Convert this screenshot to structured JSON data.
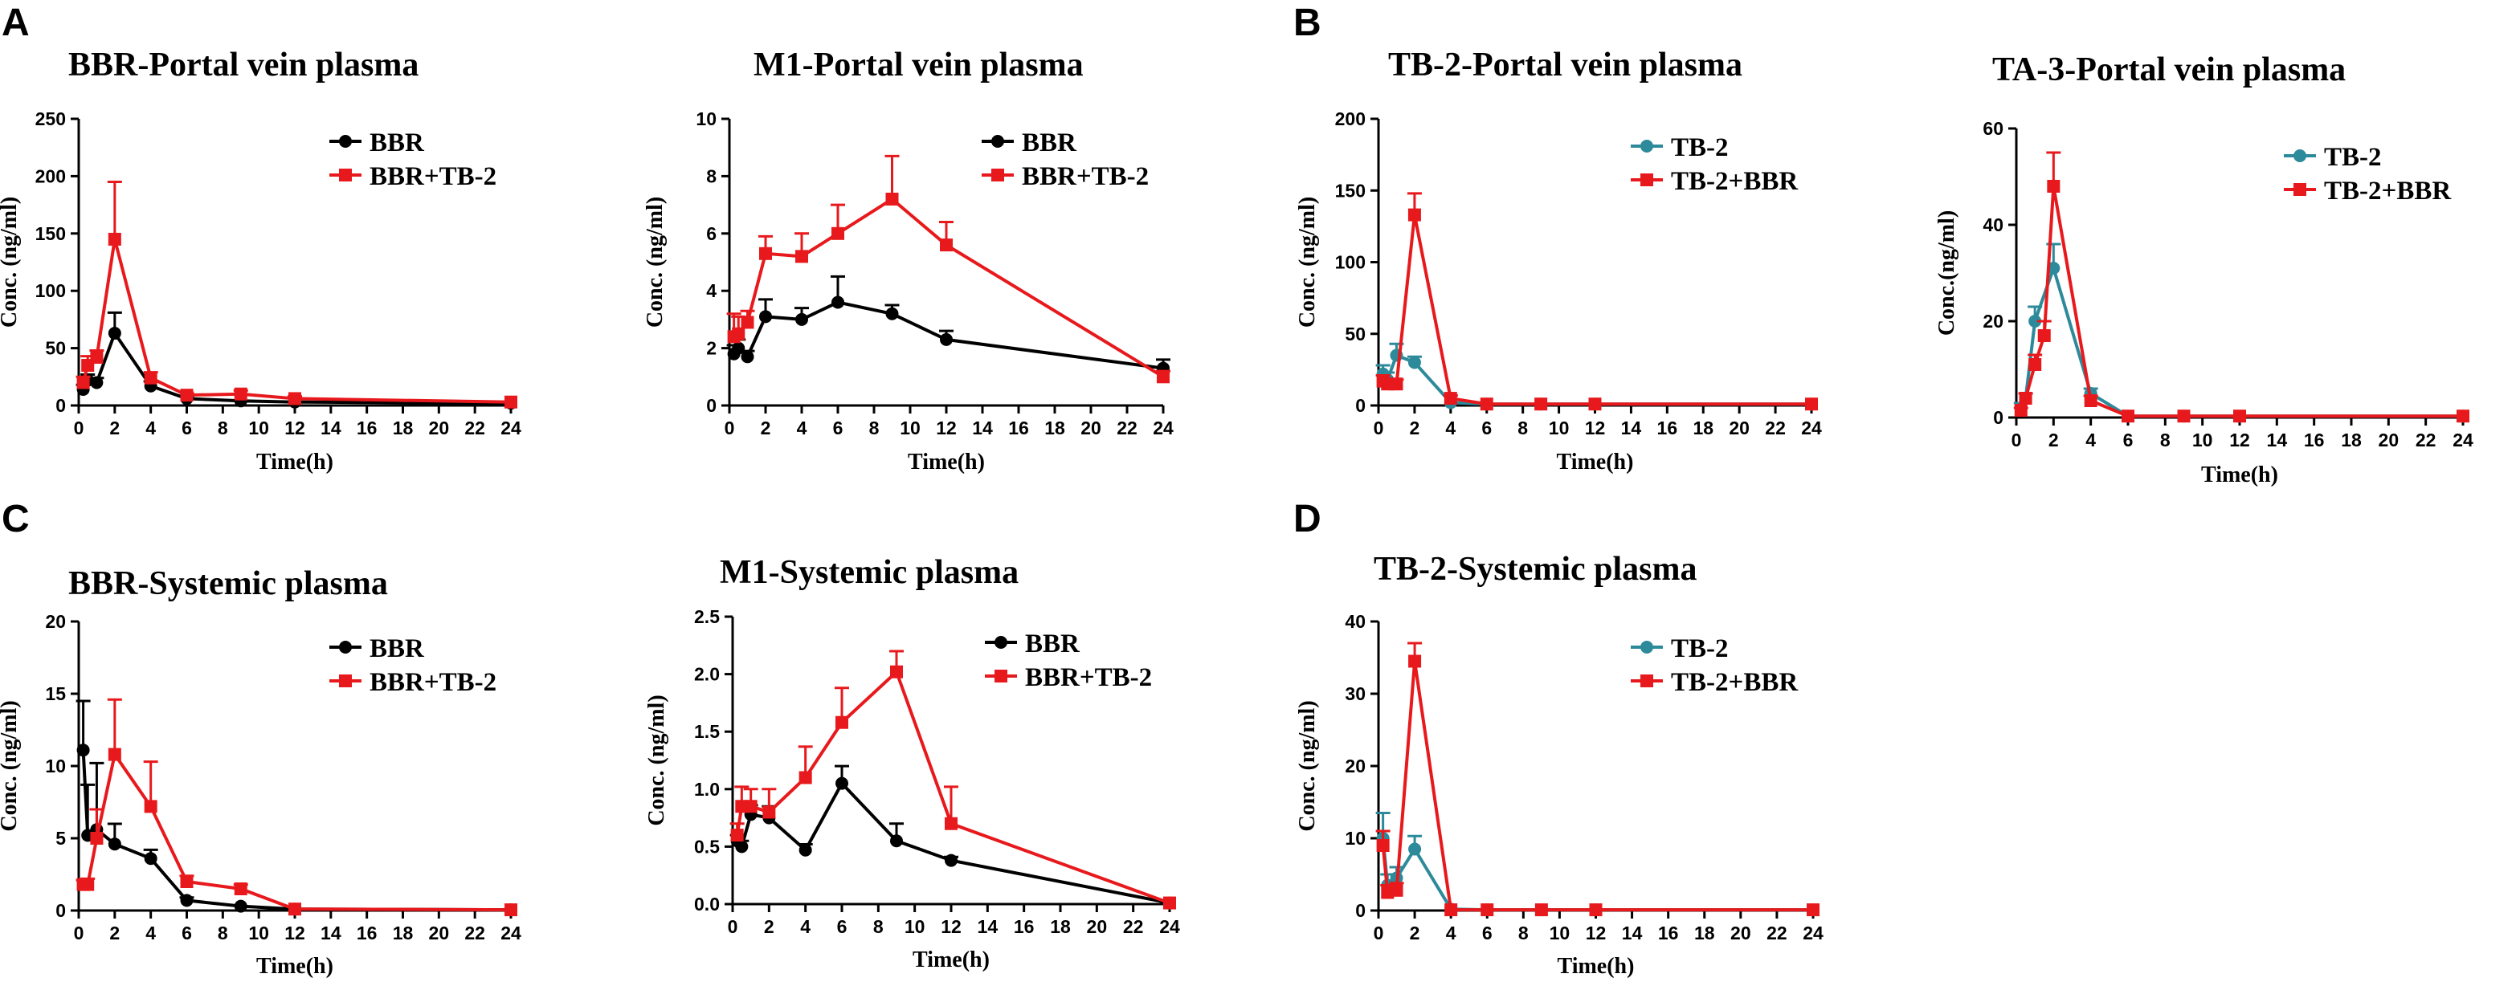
{
  "panel_letters": [
    "A",
    "B",
    "C",
    "D"
  ],
  "colors": {
    "black": "#000000",
    "red": "#e8191c",
    "teal": "#2c8a9a"
  },
  "chart_data": [
    {
      "id": "bbr-portal",
      "type": "line",
      "title": "BBR-Portal vein plasma",
      "xlabel": "Time(h)",
      "ylabel": "Conc. (ng/ml)",
      "xlim": [
        0,
        24
      ],
      "ylim": [
        0,
        250
      ],
      "xticks": [
        0,
        2,
        4,
        6,
        8,
        10,
        12,
        14,
        16,
        18,
        20,
        22,
        24
      ],
      "yticks": [
        0,
        50,
        100,
        150,
        200,
        250
      ],
      "series": [
        {
          "name": "BBR",
          "color": "#000000",
          "marker": "circle",
          "x": [
            0.25,
            0.5,
            1,
            2,
            4,
            6,
            9,
            12,
            24
          ],
          "y": [
            14,
            22,
            20,
            63,
            17,
            6,
            4,
            3,
            2
          ],
          "err": [
            4,
            5,
            4,
            18,
            4,
            2,
            1,
            1,
            0.5
          ]
        },
        {
          "name": "BBR+TB-2",
          "color": "#e8191c",
          "marker": "square",
          "x": [
            0.25,
            0.5,
            1,
            2,
            4,
            6,
            9,
            12,
            24
          ],
          "y": [
            20,
            35,
            42,
            145,
            24,
            9,
            10,
            6,
            3
          ],
          "err": [
            5,
            8,
            6,
            50,
            5,
            2,
            3,
            2,
            1
          ]
        }
      ]
    },
    {
      "id": "m1-portal",
      "type": "line",
      "title": "M1-Portal vein plasma",
      "xlabel": "Time(h)",
      "ylabel": "Conc. (ng/ml)",
      "xlim": [
        0,
        24
      ],
      "ylim": [
        0,
        10
      ],
      "xticks": [
        0,
        2,
        4,
        6,
        8,
        10,
        12,
        14,
        16,
        18,
        20,
        22,
        24
      ],
      "yticks": [
        0,
        2,
        4,
        6,
        8,
        10
      ],
      "series": [
        {
          "name": "BBR",
          "color": "#000000",
          "marker": "circle",
          "x": [
            0.25,
            0.5,
            1,
            2,
            4,
            6,
            9,
            12,
            24
          ],
          "y": [
            1.8,
            2.0,
            1.7,
            3.1,
            3.0,
            3.6,
            3.2,
            2.3,
            1.3
          ],
          "err": [
            0.3,
            0.3,
            0.2,
            0.6,
            0.4,
            0.9,
            0.3,
            0.3,
            0.3
          ]
        },
        {
          "name": "BBR+TB-2",
          "color": "#e8191c",
          "marker": "square",
          "x": [
            0.25,
            0.5,
            1,
            2,
            4,
            6,
            9,
            12,
            24
          ],
          "y": [
            2.4,
            2.5,
            2.9,
            5.3,
            5.2,
            6.0,
            7.2,
            5.6,
            1.0
          ],
          "err": [
            0.8,
            0.6,
            0.4,
            0.6,
            0.8,
            1.0,
            1.5,
            0.8,
            0.2
          ]
        }
      ]
    },
    {
      "id": "tb2-portal",
      "type": "line",
      "title": "TB-2-Portal vein plasma",
      "xlabel": "Time(h)",
      "ylabel": "Conc. (ng/ml)",
      "xlim": [
        0,
        24
      ],
      "ylim": [
        0,
        200
      ],
      "xticks": [
        0,
        2,
        4,
        6,
        8,
        10,
        12,
        14,
        16,
        18,
        20,
        22,
        24
      ],
      "yticks": [
        0,
        50,
        100,
        150,
        200
      ],
      "series": [
        {
          "name": "TB-2",
          "color": "#2c8a9a",
          "marker": "circle",
          "x": [
            0.25,
            0.5,
            1,
            2,
            4,
            6,
            9,
            12,
            24
          ],
          "y": [
            22,
            18,
            35,
            30,
            2,
            1,
            1,
            1,
            1
          ],
          "err": [
            6,
            5,
            8,
            4,
            1,
            0.5,
            0.5,
            0.5,
            0.5
          ]
        },
        {
          "name": "TB-2+BBR",
          "color": "#e8191c",
          "marker": "square",
          "x": [
            0.25,
            0.5,
            1,
            2,
            4,
            6,
            9,
            12,
            24
          ],
          "y": [
            17,
            15,
            15,
            133,
            5,
            1,
            1,
            1,
            1
          ],
          "err": [
            4,
            3,
            3,
            15,
            2,
            0.5,
            0.5,
            0.5,
            0.5
          ]
        }
      ]
    },
    {
      "id": "ta3-portal",
      "type": "line",
      "title": "TA-3-Portal vein plasma",
      "xlabel": "Time(h)",
      "ylabel": "Conc.(ng/ml)",
      "xlim": [
        0,
        24
      ],
      "ylim": [
        0,
        60
      ],
      "xticks": [
        0,
        2,
        4,
        6,
        8,
        10,
        12,
        14,
        16,
        18,
        20,
        22,
        24
      ],
      "yticks": [
        0,
        20,
        40,
        60
      ],
      "series": [
        {
          "name": "TB-2",
          "color": "#2c8a9a",
          "marker": "circle",
          "x": [
            0.25,
            0.5,
            1,
            2,
            4,
            6,
            9,
            12,
            24
          ],
          "y": [
            2,
            4,
            20,
            31,
            5,
            0.3,
            0.3,
            0.3,
            0.3
          ],
          "err": [
            1,
            1,
            3,
            5,
            1,
            0.2,
            0.2,
            0.2,
            0.2
          ]
        },
        {
          "name": "TB-2+BBR",
          "color": "#e8191c",
          "marker": "square",
          "x": [
            0.25,
            0.5,
            1,
            1.5,
            2,
            4,
            6,
            9,
            12,
            24
          ],
          "y": [
            1.5,
            4,
            11,
            17,
            48,
            3.5,
            0.3,
            0.3,
            0.3,
            0.3
          ],
          "err": [
            0.5,
            1,
            2,
            3,
            7,
            1,
            0.2,
            0.2,
            0.2,
            0.2
          ]
        }
      ]
    },
    {
      "id": "bbr-systemic",
      "type": "line",
      "title": "BBR-Systemic plasma",
      "xlabel": "Time(h)",
      "ylabel": "Conc. (ng/ml)",
      "xlim": [
        0,
        24
      ],
      "ylim": [
        0,
        20
      ],
      "xticks": [
        0,
        2,
        4,
        6,
        8,
        10,
        12,
        14,
        16,
        18,
        20,
        22,
        24
      ],
      "yticks": [
        0,
        5,
        10,
        15,
        20
      ],
      "series": [
        {
          "name": "BBR",
          "color": "#000000",
          "marker": "circle",
          "x": [
            0.25,
            0.5,
            1,
            2,
            4,
            6,
            9,
            12,
            24
          ],
          "y": [
            11.1,
            5.2,
            5.6,
            4.6,
            3.6,
            0.7,
            0.3,
            0.1,
            0.05
          ],
          "err": [
            3.4,
            3.5,
            4.6,
            1.4,
            0.6,
            0.2,
            0.1,
            0.05,
            0.02
          ]
        },
        {
          "name": "BBR+TB-2",
          "color": "#e8191c",
          "marker": "square",
          "x": [
            0.25,
            0.5,
            1,
            2,
            4,
            6,
            9,
            12,
            24
          ],
          "y": [
            1.8,
            1.8,
            5.0,
            10.8,
            7.2,
            2.0,
            1.5,
            0.1,
            0.05
          ],
          "err": [
            0.3,
            0.4,
            2.0,
            3.8,
            3.1,
            0.4,
            0.3,
            0.05,
            0.02
          ]
        }
      ]
    },
    {
      "id": "m1-systemic",
      "type": "line",
      "title": "M1-Systemic plasma",
      "xlabel": "Time(h)",
      "ylabel": "Conc. (ng/ml)",
      "xlim": [
        0,
        24
      ],
      "ylim": [
        0,
        2.5
      ],
      "xticks": [
        0,
        2,
        4,
        6,
        8,
        10,
        12,
        14,
        16,
        18,
        20,
        22,
        24
      ],
      "yticks": [
        0.0,
        0.5,
        1.0,
        1.5,
        2.0,
        2.5
      ],
      "ytick_labels": [
        "0.0",
        "0.5",
        "1.0",
        "1.5",
        "2.0",
        "2.5"
      ],
      "series": [
        {
          "name": "BBR",
          "color": "#000000",
          "marker": "circle",
          "x": [
            0.25,
            0.5,
            1,
            2,
            4,
            6,
            9,
            12,
            24
          ],
          "y": [
            0.55,
            0.5,
            0.78,
            0.75,
            0.47,
            1.05,
            0.55,
            0.38,
            0.01
          ],
          "err": [
            0.05,
            0.05,
            0.08,
            0.1,
            0.05,
            0.15,
            0.15,
            0.03,
            0.01
          ]
        },
        {
          "name": "BBR+TB-2",
          "color": "#e8191c",
          "marker": "square",
          "x": [
            0.25,
            0.5,
            1,
            2,
            4,
            6,
            9,
            12,
            24
          ],
          "y": [
            0.6,
            0.85,
            0.85,
            0.8,
            1.1,
            1.58,
            2.02,
            0.7,
            0.01
          ],
          "err": [
            0.1,
            0.17,
            0.15,
            0.2,
            0.27,
            0.3,
            0.18,
            0.32,
            0.01
          ]
        }
      ]
    },
    {
      "id": "tb2-systemic",
      "type": "line",
      "title": "TB-2-Systemic plasma",
      "xlabel": "Time(h)",
      "ylabel": "Conc. (ng/ml)",
      "xlim": [
        0,
        24
      ],
      "ylim": [
        0,
        40
      ],
      "xticks": [
        0,
        2,
        4,
        6,
        8,
        10,
        12,
        14,
        16,
        18,
        20,
        22,
        24
      ],
      "yticks": [
        0,
        10,
        20,
        30,
        40
      ],
      "series": [
        {
          "name": "TB-2",
          "color": "#2c8a9a",
          "marker": "circle",
          "x": [
            0.25,
            0.5,
            1,
            2,
            4,
            6,
            9,
            12,
            24
          ],
          "y": [
            10,
            3.5,
            4.5,
            8.5,
            0.2,
            0.1,
            0.1,
            0.1,
            0.1
          ],
          "err": [
            3.5,
            1.5,
            1.5,
            1.8,
            0.1,
            0.05,
            0.05,
            0.05,
            0.05
          ]
        },
        {
          "name": "TB-2+BBR",
          "color": "#e8191c",
          "marker": "square",
          "x": [
            0.25,
            0.5,
            1,
            2,
            4,
            6,
            9,
            12,
            24
          ],
          "y": [
            9,
            2.5,
            2.8,
            34.5,
            0.1,
            0.1,
            0.1,
            0.1,
            0.1
          ],
          "err": [
            2,
            1,
            1,
            2.5,
            0.05,
            0.05,
            0.05,
            0.05,
            0.05
          ]
        }
      ]
    }
  ]
}
